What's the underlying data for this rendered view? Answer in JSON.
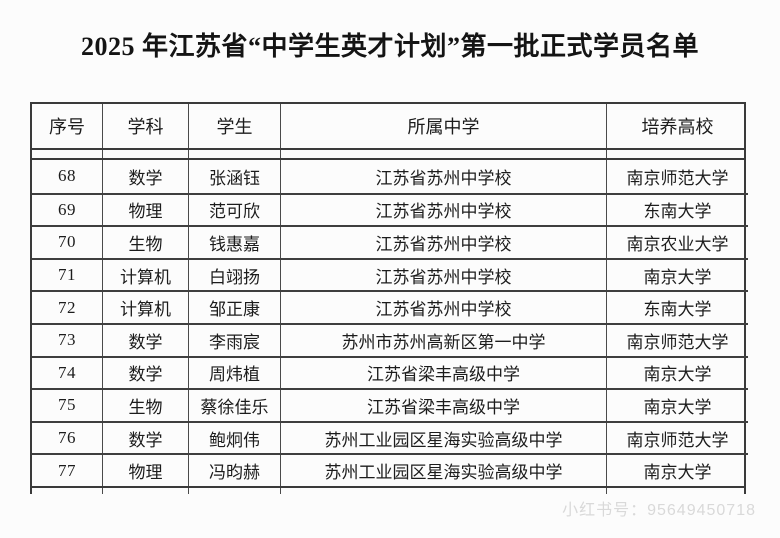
{
  "page": {
    "title": "2025 年江苏省“中学生英才计划”第一批正式学员名单",
    "watermark": "小红书号：95649450718"
  },
  "table": {
    "headers": {
      "no": "序号",
      "subject": "学科",
      "student": "学生",
      "school": "所属中学",
      "university": "培养高校"
    },
    "rows": [
      {
        "no": "68",
        "subject": "数学",
        "student": "张涵钰",
        "school": "江苏省苏州中学校",
        "university": "南京师范大学"
      },
      {
        "no": "69",
        "subject": "物理",
        "student": "范可欣",
        "school": "江苏省苏州中学校",
        "university": "东南大学"
      },
      {
        "no": "70",
        "subject": "生物",
        "student": "钱惠嘉",
        "school": "江苏省苏州中学校",
        "university": "南京农业大学"
      },
      {
        "no": "71",
        "subject": "计算机",
        "student": "白翊扬",
        "school": "江苏省苏州中学校",
        "university": "南京大学"
      },
      {
        "no": "72",
        "subject": "计算机",
        "student": "邹正康",
        "school": "江苏省苏州中学校",
        "university": "东南大学"
      },
      {
        "no": "73",
        "subject": "数学",
        "student": "李雨宸",
        "school": "苏州市苏州高新区第一中学",
        "university": "南京师范大学"
      },
      {
        "no": "74",
        "subject": "数学",
        "student": "周炜植",
        "school": "江苏省梁丰高级中学",
        "university": "南京大学"
      },
      {
        "no": "75",
        "subject": "生物",
        "student": "蔡徐佳乐",
        "school": "江苏省梁丰高级中学",
        "university": "南京大学"
      },
      {
        "no": "76",
        "subject": "数学",
        "student": "鲍炯伟",
        "school": "苏州工业园区星海实验高级中学",
        "university": "南京师范大学"
      },
      {
        "no": "77",
        "subject": "物理",
        "student": "冯昀赫",
        "school": "苏州工业园区星海实验高级中学",
        "university": "南京大学"
      }
    ]
  },
  "colors": {
    "background": "#fcfcfc",
    "text": "#1c1c1c",
    "border": "#3a3a3a",
    "watermark": "#d9d9d9"
  }
}
